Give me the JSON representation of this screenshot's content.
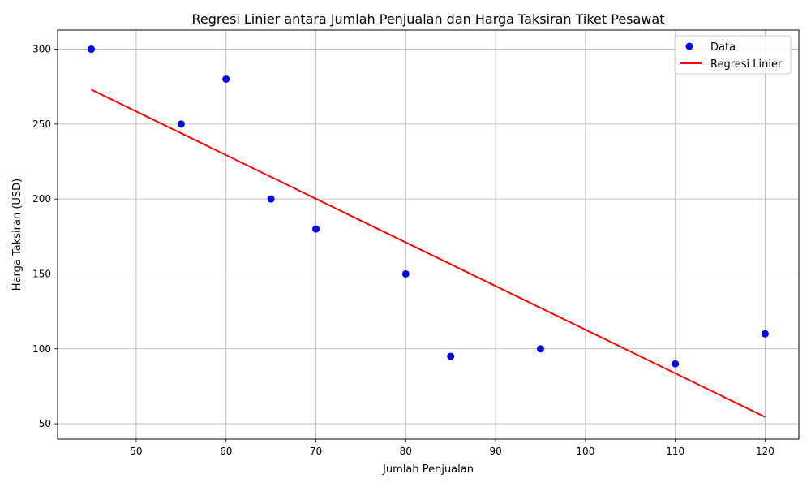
{
  "chart_data": {
    "type": "scatter",
    "title": "Regresi Linier antara Jumlah Penjualan dan Harga Taksiran Tiket Pesawat",
    "xlabel": "Jumlah Penjualan",
    "ylabel": "Harga Taksiran (USD)",
    "xlim": [
      41.25,
      123.75
    ],
    "ylim": [
      39.75,
      312.75
    ],
    "xticks": [
      50,
      60,
      70,
      80,
      90,
      100,
      110,
      120
    ],
    "yticks": [
      50,
      100,
      150,
      200,
      250,
      300
    ],
    "grid": true,
    "legend_position": "top-right",
    "series": [
      {
        "name": "Data",
        "kind": "scatter",
        "color": "#0000ff",
        "points": [
          {
            "x": 45,
            "y": 300
          },
          {
            "x": 55,
            "y": 250
          },
          {
            "x": 60,
            "y": 280
          },
          {
            "x": 65,
            "y": 200
          },
          {
            "x": 70,
            "y": 180
          },
          {
            "x": 80,
            "y": 150
          },
          {
            "x": 85,
            "y": 95
          },
          {
            "x": 95,
            "y": 100
          },
          {
            "x": 110,
            "y": 90
          },
          {
            "x": 120,
            "y": 110
          }
        ]
      },
      {
        "name": "Regresi Linier",
        "kind": "line",
        "color": "#ff0000",
        "points": [
          {
            "x": 45,
            "y": 273
          },
          {
            "x": 120,
            "y": 54.5
          }
        ]
      }
    ]
  }
}
